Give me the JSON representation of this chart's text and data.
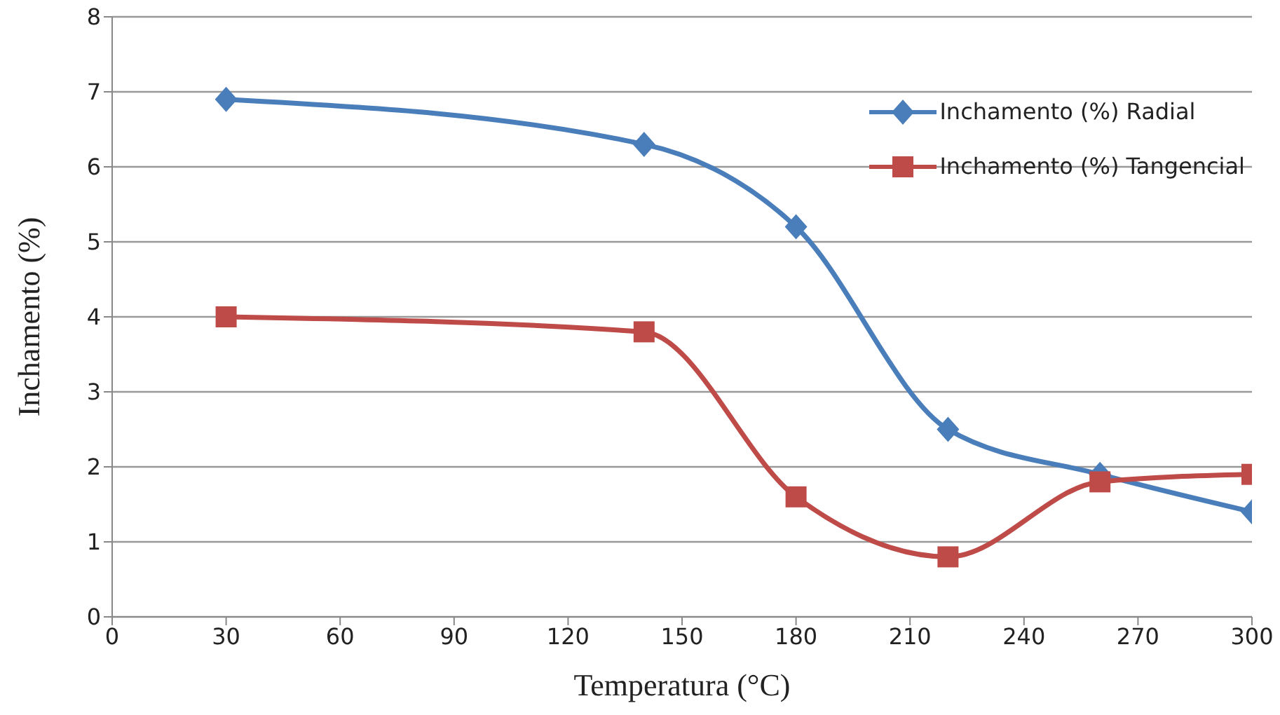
{
  "chart_data": {
    "type": "line",
    "xlabel": "Temperatura  (°C)",
    "ylabel": "Inchamento (%)",
    "x": [
      30,
      140,
      180,
      220,
      260,
      300
    ],
    "series": [
      {
        "name": "Inchamento (%) Radial",
        "color": "#4a7ebb",
        "marker": "diamond",
        "values": [
          6.9,
          6.3,
          5.2,
          2.5,
          1.9,
          1.4
        ]
      },
      {
        "name": "Inchamento (%) Tangencial",
        "color": "#be4b48",
        "marker": "square",
        "values": [
          4.0,
          3.8,
          1.6,
          0.8,
          1.8,
          1.9
        ]
      }
    ],
    "xlim": [
      0,
      300
    ],
    "xticks": [
      0,
      30,
      60,
      90,
      120,
      150,
      180,
      210,
      240,
      270,
      300
    ],
    "ylim": [
      0,
      8
    ],
    "yticks": [
      0,
      1,
      2,
      3,
      4,
      5,
      6,
      7,
      8
    ],
    "grid": "y",
    "legend": "top right",
    "line_style": "solid"
  }
}
